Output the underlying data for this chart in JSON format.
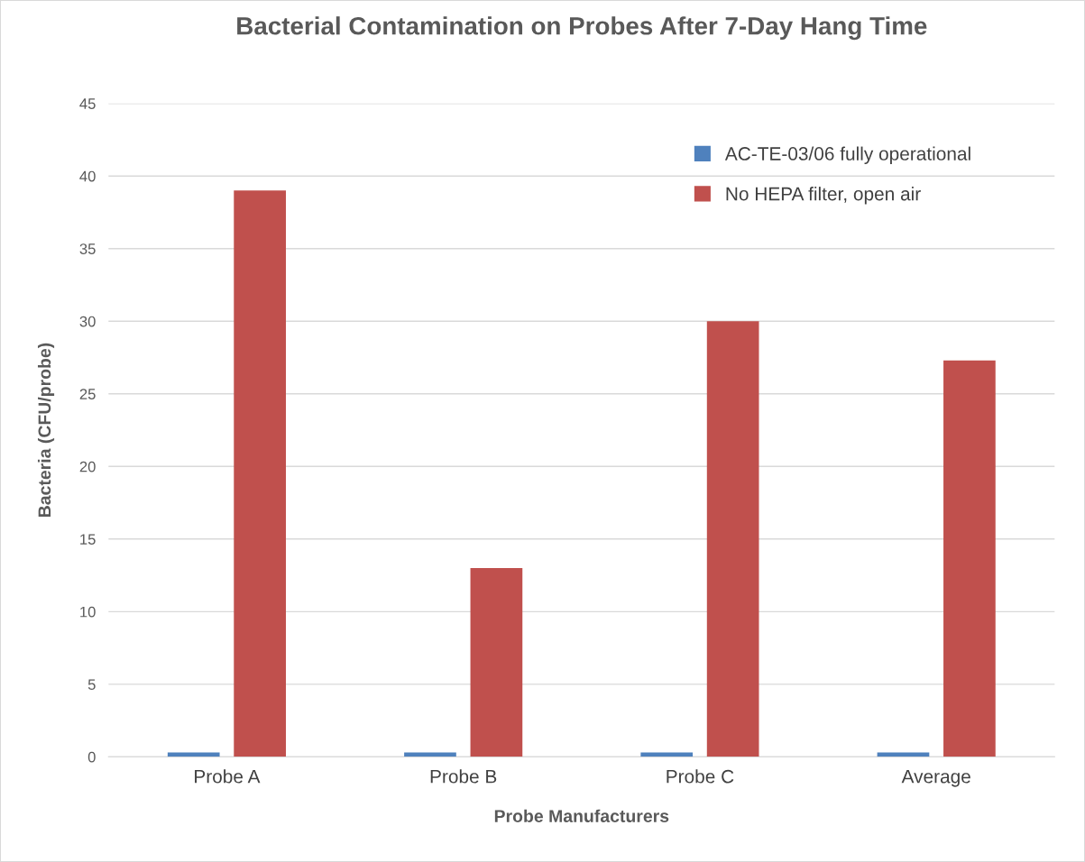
{
  "chart_data": {
    "type": "bar",
    "title": "Bacterial Contamination on Probes After 7-Day Hang Time",
    "xlabel": "Probe Manufacturers",
    "ylabel": "Bacteria (CFU/probe)",
    "categories": [
      "Probe A",
      "Probe B",
      "Probe C",
      "Average"
    ],
    "series": [
      {
        "name": "AC-TE-03/06 fully operational",
        "color": "#4f81bd",
        "values": [
          0.3,
          0.3,
          0.3,
          0.3
        ]
      },
      {
        "name": "No HEPA filter, open air",
        "color": "#c0504d",
        "values": [
          39,
          13,
          30,
          27.3
        ]
      }
    ],
    "ylim": [
      0,
      45
    ],
    "yticks": [
      0,
      5,
      10,
      15,
      20,
      25,
      30,
      35,
      40,
      45
    ],
    "grid": "y",
    "legend": "top right"
  }
}
